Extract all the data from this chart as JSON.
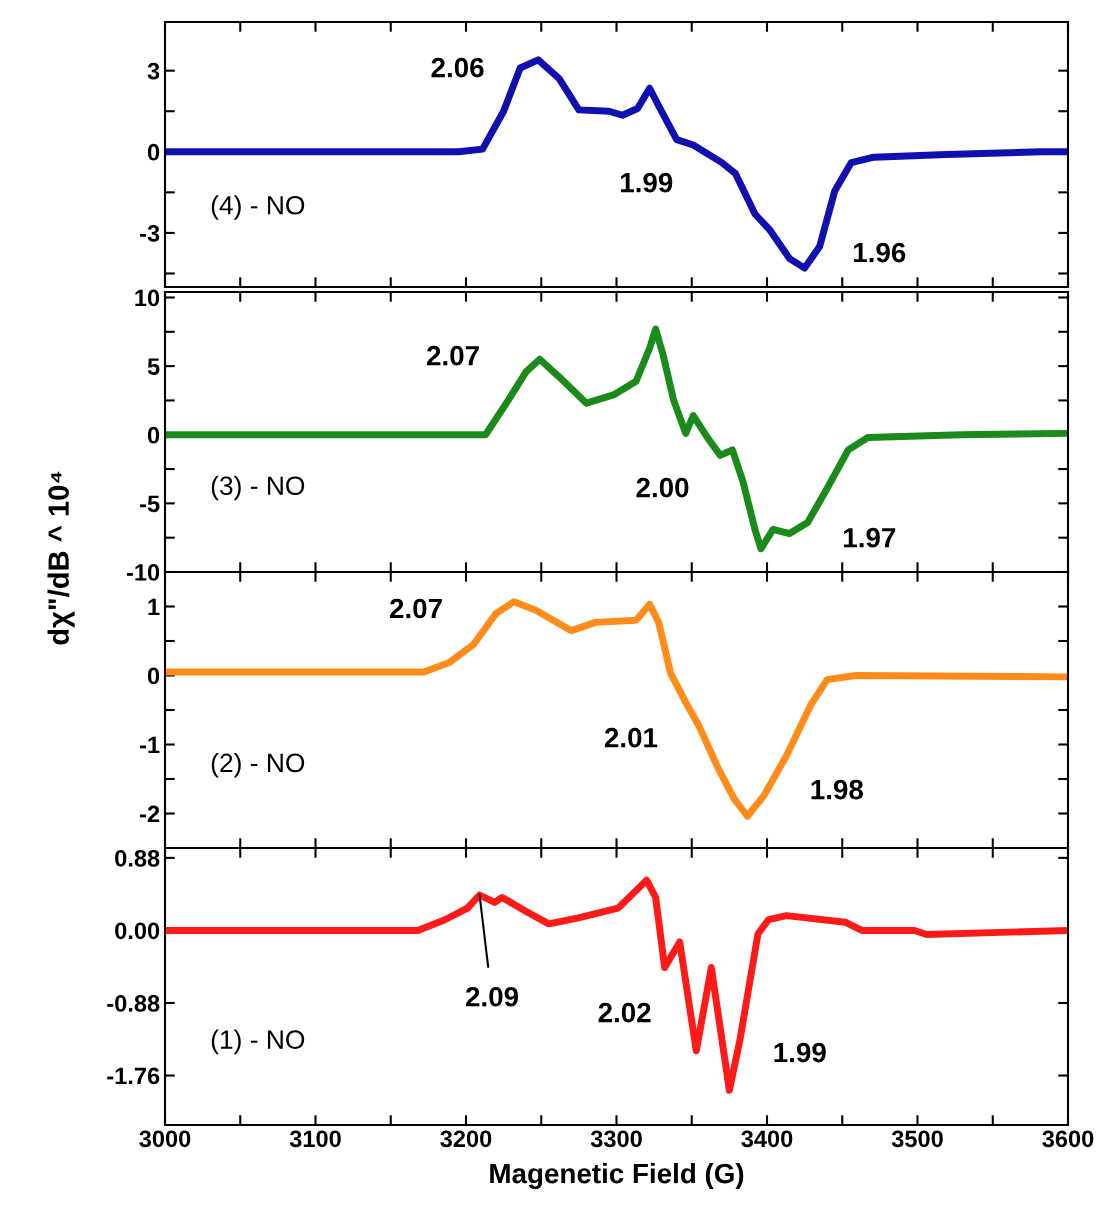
{
  "chart_data": [
    {
      "type": "line",
      "tick_labels": "y",
      "xlim": [
        3000,
        3600
      ],
      "ylim": [
        -5.0,
        4.8
      ],
      "grid": false,
      "legend": false,
      "xticks": [
        {
          "value": 3000,
          "label": null
        },
        {
          "value": 3050,
          "label": null
        },
        {
          "value": 3100,
          "label": null
        },
        {
          "value": 3150,
          "label": null
        },
        {
          "value": 3200,
          "label": null
        },
        {
          "value": 3250,
          "label": null
        },
        {
          "value": 3300,
          "label": null
        },
        {
          "value": 3350,
          "label": null
        },
        {
          "value": 3400,
          "label": null
        },
        {
          "value": 3450,
          "label": null
        },
        {
          "value": 3500,
          "label": null
        },
        {
          "value": 3550,
          "label": null
        },
        {
          "value": 3600,
          "label": null
        }
      ],
      "yticks": [
        {
          "value": -4.5,
          "label": null
        },
        -3,
        {
          "value": -1.5,
          "label": null
        },
        0,
        {
          "value": 1.5,
          "label": null
        },
        3
      ],
      "series": [
        {
          "name": "(4) - NO",
          "color": "#1010b0",
          "x": [
            3000,
            3195,
            3211,
            3225,
            3236,
            3248,
            3262,
            3275,
            3295,
            3304,
            3314,
            3322,
            3329,
            3340,
            3351,
            3370,
            3379,
            3392,
            3402,
            3415,
            3425,
            3435,
            3445,
            3456,
            3471,
            3519,
            3582,
            3600
          ],
          "values": [
            0,
            0,
            0.1,
            1.5,
            3.1,
            3.4,
            2.7,
            1.55,
            1.5,
            1.35,
            1.6,
            2.35,
            1.6,
            0.45,
            0.25,
            -0.4,
            -0.8,
            -2.3,
            -2.9,
            -3.95,
            -4.3,
            -3.5,
            -1.45,
            -0.4,
            -0.2,
            -0.1,
            0,
            0
          ]
        }
      ],
      "annotations": [
        "2.06",
        "1.99",
        "1.96"
      ]
    },
    {
      "type": "line",
      "tick_labels": "y",
      "xlim": [
        3000,
        3600
      ],
      "ylim": [
        -10,
        10.4
      ],
      "grid": false,
      "legend": false,
      "ylabel": "dχ\"/dB ^ 10⁴",
      "xticks": [
        {
          "value": 3000,
          "label": null
        },
        {
          "value": 3050,
          "label": null
        },
        {
          "value": 3100,
          "label": null
        },
        {
          "value": 3150,
          "label": null
        },
        {
          "value": 3200,
          "label": null
        },
        {
          "value": 3250,
          "label": null
        },
        {
          "value": 3300,
          "label": null
        },
        {
          "value": 3350,
          "label": null
        },
        {
          "value": 3400,
          "label": null
        },
        {
          "value": 3450,
          "label": null
        },
        {
          "value": 3500,
          "label": null
        },
        {
          "value": 3550,
          "label": null
        },
        {
          "value": 3600,
          "label": null
        }
      ],
      "yticks": [
        -10,
        {
          "value": -7.5,
          "label": null
        },
        -5,
        {
          "value": -2.5,
          "label": null
        },
        0,
        {
          "value": 2.5,
          "label": null
        },
        5,
        {
          "value": 7.5,
          "label": null
        },
        10
      ],
      "series": [
        {
          "name": "(3) - NO",
          "color": "#1a8a1a",
          "x": [
            3000,
            3186,
            3213,
            3228,
            3240,
            3249,
            3262,
            3280,
            3298,
            3313,
            3322,
            3326,
            3331,
            3338,
            3346,
            3351,
            3361,
            3369,
            3377,
            3384,
            3392,
            3396,
            3404,
            3415,
            3427,
            3440,
            3454,
            3467,
            3529,
            3600
          ],
          "values": [
            0,
            0,
            0,
            2.5,
            4.6,
            5.5,
            4.2,
            2.3,
            2.9,
            3.9,
            6.3,
            7.7,
            5.8,
            2.5,
            0.1,
            1.4,
            -0.3,
            -1.5,
            -1.1,
            -3.4,
            -6.9,
            -8.3,
            -6.9,
            -7.2,
            -6.4,
            -3.9,
            -1.1,
            -0.2,
            0,
            0.1
          ]
        }
      ],
      "annotations": [
        "2.07",
        "2.00",
        "1.97"
      ]
    },
    {
      "type": "line",
      "tick_labels": "y",
      "xlim": [
        3000,
        3600
      ],
      "ylim": [
        -2.5,
        1.5
      ],
      "grid": false,
      "legend": false,
      "xticks": [
        {
          "value": 3000,
          "label": null
        },
        {
          "value": 3050,
          "label": null
        },
        {
          "value": 3100,
          "label": null
        },
        {
          "value": 3150,
          "label": null
        },
        {
          "value": 3200,
          "label": null
        },
        {
          "value": 3250,
          "label": null
        },
        {
          "value": 3300,
          "label": null
        },
        {
          "value": 3350,
          "label": null
        },
        {
          "value": 3400,
          "label": null
        },
        {
          "value": 3450,
          "label": null
        },
        {
          "value": 3500,
          "label": null
        },
        {
          "value": 3550,
          "label": null
        },
        {
          "value": 3600,
          "label": null
        }
      ],
      "yticks": [
        -2,
        {
          "value": -1.5,
          "label": null
        },
        -1,
        {
          "value": -0.5,
          "label": null
        },
        0,
        {
          "value": 0.5,
          "label": null
        },
        1
      ],
      "series": [
        {
          "name": "(2) - NO",
          "color": "#ff8c1a",
          "x": [
            3000,
            3172,
            3189,
            3205,
            3220,
            3232,
            3247,
            3270,
            3286,
            3313,
            3322,
            3328,
            3336,
            3346,
            3355,
            3367,
            3378,
            3387,
            3398,
            3413,
            3429,
            3440,
            3459,
            3600
          ],
          "values": [
            0.05,
            0.05,
            0.19,
            0.45,
            0.9,
            1.07,
            0.94,
            0.65,
            0.77,
            0.8,
            1.03,
            0.77,
            0.03,
            -0.39,
            -0.74,
            -1.32,
            -1.78,
            -2.04,
            -1.74,
            -1.16,
            -0.43,
            -0.06,
            0.0,
            -0.02
          ]
        }
      ],
      "annotations": [
        "2.07",
        "2.01",
        "1.98"
      ]
    },
    {
      "type": "line",
      "xlim": [
        3000,
        3600
      ],
      "ylim": [
        -2.36,
        1.0
      ],
      "grid": false,
      "legend": false,
      "xlabel": "Magenetic Field (G)",
      "xticks": [
        3000,
        {
          "value": 3050,
          "label": null
        },
        3100,
        {
          "value": 3150,
          "label": null
        },
        3200,
        {
          "value": 3250,
          "label": null
        },
        3300,
        {
          "value": 3350,
          "label": null
        },
        3400,
        {
          "value": 3450,
          "label": null
        },
        3500,
        {
          "value": 3550,
          "label": null
        },
        3600
      ],
      "yticks": [
        {
          "value": -1.76,
          "label": "-1.76"
        },
        {
          "value": -0.88,
          "label": "-0.88"
        },
        {
          "value": 0,
          "label": "0.00"
        },
        {
          "value": 0.88,
          "label": "0.88"
        }
      ],
      "series": [
        {
          "name": "(1) - NO",
          "color": "#ff1a1a",
          "x": [
            3000,
            3168,
            3186,
            3201,
            3209,
            3219,
            3224,
            3240,
            3255,
            3274,
            3301,
            3320,
            3326,
            3332,
            3342,
            3353,
            3363,
            3375,
            3382,
            3394,
            3401,
            3413,
            3452,
            3463,
            3498,
            3506,
            3600
          ],
          "values": [
            0,
            0,
            0.13,
            0.27,
            0.43,
            0.34,
            0.4,
            0.23,
            0.08,
            0.15,
            0.27,
            0.61,
            0.4,
            -0.45,
            -0.14,
            -1.46,
            -0.45,
            -1.94,
            -1.33,
            -0.04,
            0.13,
            0.18,
            0.1,
            0.0,
            0,
            -0.05,
            0
          ]
        }
      ],
      "annotations": [
        {
          "text": "2.09",
          "x": 3209,
          "y": 0.43
        },
        "2.02",
        "1.99"
      ]
    }
  ]
}
